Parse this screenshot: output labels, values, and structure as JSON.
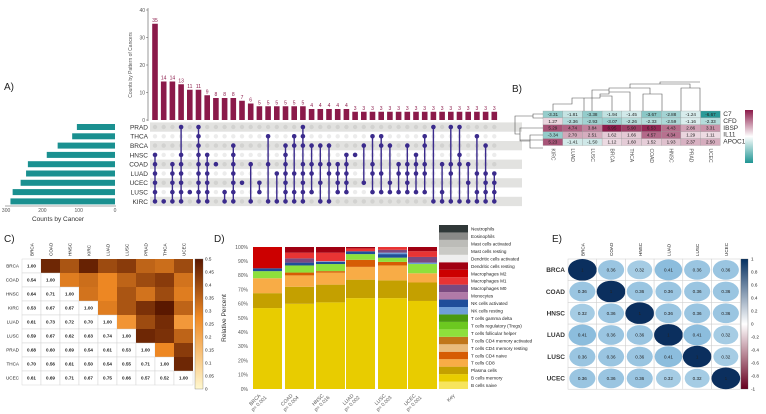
{
  "panels": {
    "a": "A)",
    "b": "B)",
    "c": "C)",
    "d": "D)",
    "e": "E)"
  },
  "chart_data": [
    {
      "type": "bar",
      "panel": "A",
      "title": "",
      "ylabel": "Counts by Pattern of Cancers",
      "ylim": [
        0,
        40
      ],
      "yticks": [
        "0",
        "10",
        "20",
        "30",
        "40"
      ],
      "intersection_counts": [
        35,
        14,
        14,
        13,
        11,
        11,
        9,
        8,
        8,
        8,
        7,
        6,
        5,
        5,
        5,
        5,
        5,
        5,
        4,
        4,
        4,
        4,
        4,
        3,
        3,
        3,
        3,
        3,
        3,
        3,
        3,
        3,
        3,
        3,
        3,
        3,
        3,
        3,
        3,
        3
      ],
      "intersection_sets": [
        [
          3,
          4,
          5,
          6,
          7,
          8
        ],
        [
          8
        ],
        [
          4,
          5,
          6,
          7,
          8
        ],
        [
          0,
          3,
          4,
          5,
          6,
          7,
          8
        ],
        [
          7
        ],
        [
          0,
          1,
          2,
          3,
          4,
          5,
          6,
          7,
          8
        ],
        [
          3,
          4,
          5,
          6,
          7,
          8
        ],
        [
          4
        ],
        [
          7,
          8
        ],
        [
          2,
          3,
          4,
          5,
          6,
          7,
          8
        ],
        [
          6
        ],
        [
          4,
          8
        ],
        [
          6,
          7
        ],
        [
          1,
          4,
          8
        ],
        [
          5,
          8
        ],
        [
          2,
          3,
          4,
          5,
          6,
          7,
          8
        ],
        [
          1,
          2,
          5,
          7,
          8
        ],
        [
          0,
          1,
          2,
          4,
          5,
          6,
          7,
          8
        ],
        [
          2,
          4,
          5,
          7
        ],
        [
          2,
          4,
          6,
          8
        ],
        [
          2,
          4,
          5,
          8
        ],
        [
          4,
          5,
          6,
          7
        ],
        [
          3,
          4,
          5,
          6,
          7
        ],
        [
          3
        ],
        [
          2,
          6
        ],
        [
          1,
          4,
          5,
          7
        ],
        [
          1,
          2,
          5,
          7
        ],
        [
          2,
          6,
          7
        ],
        [
          4,
          5,
          7
        ],
        [
          2,
          4,
          5,
          6,
          7
        ],
        [
          3,
          4,
          5,
          7
        ],
        [
          1,
          2,
          4,
          5,
          7
        ],
        [
          0,
          8
        ],
        [
          4,
          7,
          8
        ],
        [
          0,
          4,
          5,
          8
        ],
        [
          0,
          3,
          4,
          8
        ],
        [
          4,
          6,
          8
        ],
        [
          1,
          5,
          7,
          8
        ],
        [
          2,
          5,
          6,
          7,
          8
        ],
        [
          5,
          6,
          7,
          8
        ]
      ],
      "sets": [
        "PRAD",
        "THCA",
        "BRCA",
        "HNSC",
        "COAD",
        "LUAD",
        "UCEC",
        "LUSC",
        "KIRC"
      ],
      "set_sizes": [
        105,
        118,
        158,
        188,
        240,
        245,
        260,
        282,
        288
      ],
      "set_xlabel": "Counts by Cancer",
      "set_xticks": [
        "300",
        "200",
        "100",
        "0"
      ],
      "colors": {
        "bars": "#8b1a4a",
        "sets": "#1a9090",
        "dots": "#3b2b8c"
      }
    },
    {
      "type": "heatmap",
      "panel": "B",
      "rows": [
        "C7",
        "CFD",
        "IBSP",
        "IL11",
        "APOC1"
      ],
      "columns": [
        "KIRC",
        "LUAD",
        "LUSC",
        "BRCA",
        "THCA",
        "COAD",
        "HNSC",
        "PRAD",
        "UCEC"
      ],
      "values": [
        [
          "-3.31",
          "-1.81",
          "-3.38",
          "-1.94",
          "-1.45",
          "-3.67",
          "-2.88",
          "-1.24",
          "-6.67"
        ],
        [
          "1.27",
          "-2.36",
          "-2.93",
          "-3.07",
          "-2.26",
          "-2.33",
          "-2.59",
          "-1.16",
          "-2.33"
        ],
        [
          "5.29",
          "4.74",
          "3.84",
          "6.95",
          "5.90",
          "6.53",
          "4.43",
          "2.86",
          "3.31"
        ],
        [
          "-3.34",
          "2.70",
          "2.51",
          "1.62",
          "1.66",
          "4.57",
          "4.34",
          "1.29",
          "1.11"
        ],
        [
          "5.23",
          "-1.41",
          "-1.50",
          "1.12",
          "1.60",
          "1.52",
          "1.93",
          "2.37",
          "2.50"
        ]
      ],
      "colors": {
        "low": "#1f9593",
        "mid": "#ffffff",
        "high": "#8b1a4a"
      }
    },
    {
      "type": "heatmap",
      "panel": "C",
      "labels": [
        "BRCA",
        "COAD",
        "HNSC",
        "KIRC",
        "LUAD",
        "LUSC",
        "PRAD",
        "THCA",
        "UCEC"
      ],
      "lower_values": [
        [
          "1.00"
        ],
        [
          "0.54",
          "1.00"
        ],
        [
          "0.64",
          "0.71",
          "1.00"
        ],
        [
          "0.53",
          "0.67",
          "0.67",
          "1.00"
        ],
        [
          "0.61",
          "0.73",
          "0.72",
          "0.70",
          "1.00"
        ],
        [
          "0.59",
          "0.67",
          "0.62",
          "0.63",
          "0.74",
          "1.00"
        ],
        [
          "0.68",
          "0.60",
          "0.69",
          "0.54",
          "0.61",
          "0.53",
          "1.00"
        ],
        [
          "0.70",
          "0.56",
          "0.61",
          "0.50",
          "0.54",
          "0.55",
          "0.71",
          "1.00"
        ],
        [
          "0.61",
          "0.69",
          "0.71",
          "0.67",
          "0.75",
          "0.66",
          "0.57",
          "0.52",
          "1.00"
        ]
      ],
      "upper_values": [
        [
          0.47,
          0.38,
          0.48,
          0.4,
          0.43,
          0.35,
          0.33,
          0.4
        ],
        [
          0.3,
          0.33,
          0.28,
          0.35,
          0.4,
          0.43,
          0.32
        ],
        [
          0.32,
          0.28,
          0.38,
          0.32,
          0.4,
          0.3
        ],
        [
          0.3,
          0.38,
          0.45,
          0.5,
          0.35
        ],
        [
          0.25,
          0.4,
          0.46,
          0.24
        ],
        [
          0.47,
          0.45,
          0.35
        ],
        [
          0.28,
          0.43
        ],
        [
          0.47
        ]
      ],
      "colorbar_ticks": [
        "0",
        "0.05",
        "0.1",
        "0.15",
        "0.2",
        "0.25",
        "0.3",
        "0.35",
        "0.4",
        "0.45",
        "0.5"
      ],
      "colors": {
        "low": "#fff8d0",
        "mid": "#f08a24",
        "high": "#5a1800"
      }
    },
    {
      "type": "bar",
      "stacked": true,
      "panel": "D",
      "ylabel": "Relative Percent",
      "yticks": [
        "0%",
        "10%",
        "20%",
        "30%",
        "40%",
        "50%",
        "60%",
        "70%",
        "80%",
        "90%",
        "100%"
      ],
      "categories": [
        "BRCA\np= 0.001",
        "COAD\np= 0.004",
        "HNSC\np= 0.016",
        "LUAD\np= 0.002",
        "LUSC\np= 0.003",
        "UCEC\np= 0.001"
      ],
      "category_names": [
        "BRCA",
        "COAD",
        "HNSC",
        "LUAD",
        "LUSC",
        "UCEC"
      ],
      "category_pvalues": [
        "p= 0.001",
        "p= 0.004",
        "p= 0.016",
        "p= 0.002",
        "p= 0.003",
        "p= 0.001"
      ],
      "key_label": "Key",
      "cell_types": [
        "B cells naive",
        "B cells memory",
        "Plasma cells",
        "T cells CD8",
        "T cells CD4 naive",
        "T cells CD4 memory resting",
        "T cells CD4 memory activated",
        "T cells follicular helper",
        "T cells regulatory (Tregs)",
        "T cells gamma delta",
        "NK cells resting",
        "NK cells activated",
        "Monocytes",
        "Macrophages M0",
        "Macrophages M1",
        "Macrophages M2",
        "Dendritic cells resting",
        "Dendritic cells activated",
        "Mast cells resting",
        "Mast cells activated",
        "Eosinophils",
        "Neutrophils"
      ],
      "cell_colors": [
        "#f7e45c",
        "#e8cc00",
        "#c4a000",
        "#f8ac46",
        "#d65c04",
        "#e9bb7c",
        "#c0761a",
        "#8ee03c",
        "#6cc820",
        "#4a9a10",
        "#6f9fd8",
        "#1f4e9a",
        "#b07aa8",
        "#7a4a80",
        "#e83434",
        "#cc0000",
        "#a00012",
        "#eeeeee",
        "#c9c9c5",
        "#bcbcb8",
        "#8a8a88",
        "#303838"
      ],
      "series": [
        {
          "name": "BRCA",
          "segments": [
            [
              1,
              57
            ],
            [
              2,
              10.5
            ],
            [
              3,
              10.5
            ],
            [
              7,
              5
            ],
            [
              11,
              2
            ],
            [
              15,
              15
            ]
          ]
        },
        {
          "name": "COAD",
          "segments": [
            [
              1,
              60
            ],
            [
              2,
              12
            ],
            [
              3,
              8
            ],
            [
              4,
              2
            ],
            [
              7,
              5
            ],
            [
              11,
              2
            ],
            [
              13,
              3
            ],
            [
              14,
              4
            ],
            [
              16,
              4
            ]
          ]
        },
        {
          "name": "HNSC",
          "segments": [
            [
              1,
              61
            ],
            [
              2,
              12.5
            ],
            [
              3,
              8.5
            ],
            [
              4,
              1
            ],
            [
              7,
              5
            ],
            [
              11,
              1.5
            ],
            [
              10,
              0.5
            ],
            [
              14,
              6
            ],
            [
              16,
              4
            ]
          ]
        },
        {
          "name": "LUAD",
          "segments": [
            [
              1,
              64
            ],
            [
              2,
              13
            ],
            [
              3,
              9
            ],
            [
              4,
              5
            ],
            [
              7,
              4
            ],
            [
              11,
              2
            ],
            [
              14,
              2
            ],
            [
              16,
              1
            ]
          ]
        },
        {
          "name": "LUSC",
          "segments": [
            [
              1,
              64
            ],
            [
              2,
              12.5
            ],
            [
              3,
              10.5
            ],
            [
              4,
              2.5
            ],
            [
              7,
              3
            ],
            [
              11,
              2.5
            ],
            [
              10,
              1
            ],
            [
              13,
              2
            ],
            [
              14,
              2
            ]
          ]
        },
        {
          "name": "UCEC",
          "segments": [
            [
              1,
              62
            ],
            [
              2,
              13
            ],
            [
              3,
              6.5
            ],
            [
              7,
              6.5
            ],
            [
              10,
              1
            ],
            [
              13,
              4
            ],
            [
              14,
              4
            ],
            [
              16,
              3
            ]
          ]
        }
      ]
    },
    {
      "type": "heatmap",
      "panel": "E",
      "labels": [
        "BRCA",
        "COAD",
        "HNSC",
        "LUAD",
        "LUSC",
        "UCEC"
      ],
      "values": [
        [
          "1",
          "0.36",
          "0.32",
          "0.41",
          "0.36",
          "0.36"
        ],
        [
          "0.36",
          "1",
          "0.36",
          "0.36",
          "0.36",
          "0.36"
        ],
        [
          "0.32",
          "0.36",
          "1",
          "0.36",
          "0.36",
          "0.36"
        ],
        [
          "0.41",
          "0.36",
          "0.36",
          "1",
          "0.41",
          "0.32"
        ],
        [
          "0.36",
          "0.36",
          "0.36",
          "0.41",
          "1",
          "0.32"
        ],
        [
          "0.36",
          "0.36",
          "0.36",
          "0.32",
          "0.32",
          "1"
        ]
      ],
      "colorbar_ticks": [
        "1",
        "0.8",
        "0.6",
        "0.4",
        "0.2",
        "0",
        "-0.2",
        "-0.4",
        "-0.6",
        "-0.8",
        "-1"
      ],
      "colors": {
        "neg": "#67001f",
        "zero": "#ffffff",
        "pos": "#053061"
      }
    }
  ]
}
